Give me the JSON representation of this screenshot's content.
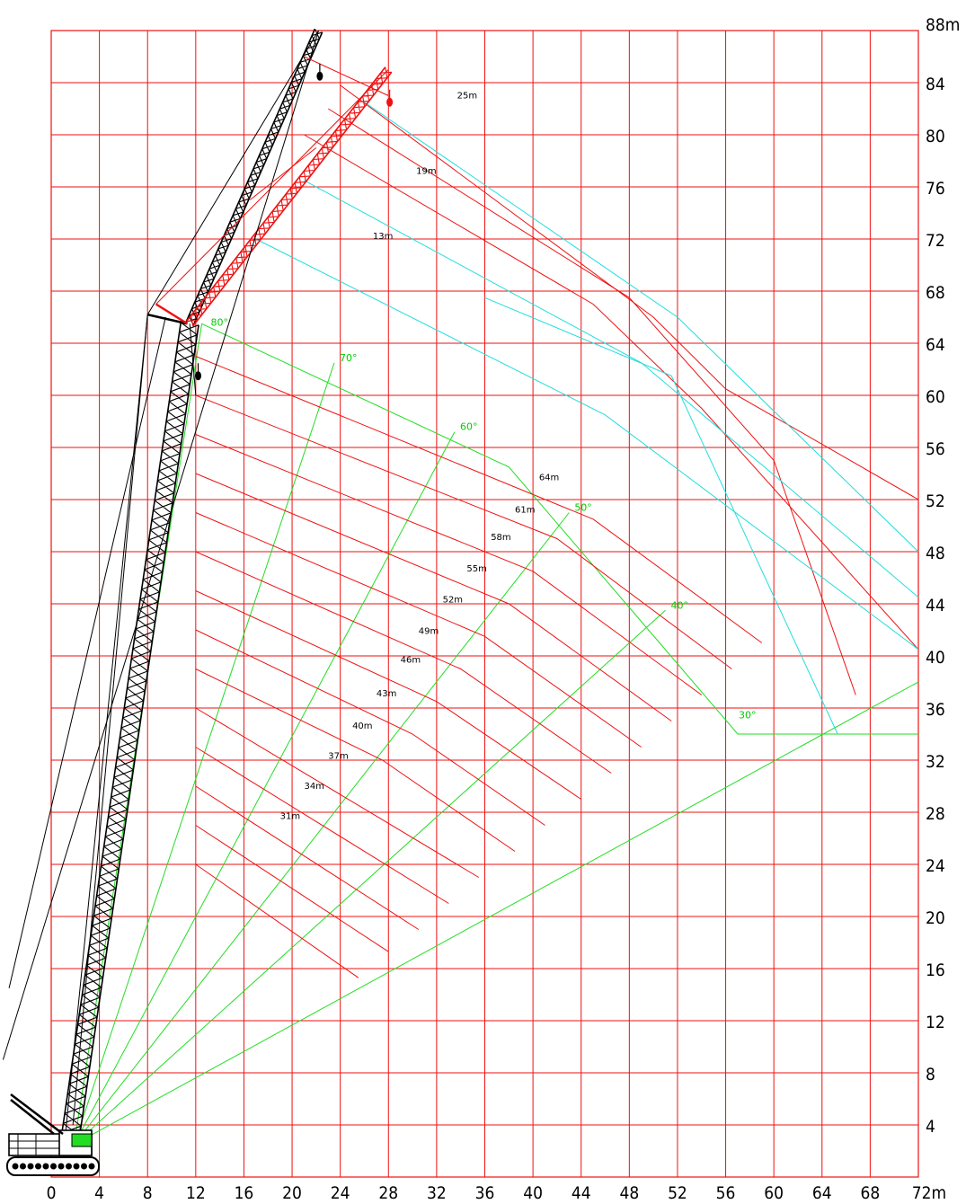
{
  "chart_data": {
    "type": "range-diagram",
    "x_axis": {
      "ticks": [
        "0",
        "4",
        "8",
        "12",
        "16",
        "20",
        "24",
        "28",
        "32",
        "36",
        "40",
        "44",
        "48",
        "52",
        "56",
        "60",
        "64",
        "68",
        "72m"
      ],
      "range": [
        0,
        72
      ]
    },
    "y_axis": {
      "ticks": [
        "4",
        "8",
        "12",
        "16",
        "20",
        "24",
        "28",
        "32",
        "36",
        "40",
        "44",
        "48",
        "52",
        "56",
        "60",
        "64",
        "68",
        "72",
        "76",
        "80",
        "84",
        "88m"
      ],
      "range": [
        0,
        88
      ]
    },
    "grid": true,
    "colors": {
      "grid": "#ee1111",
      "main_boom_curves": "#ee1111",
      "jib_curves": "#22dddd",
      "angle_lines": "#22dd22",
      "main_boom": "#000000",
      "luffing_jib": "#ee1111",
      "background": "#ffffff"
    },
    "main_boom_curves": [
      {
        "label": "31m",
        "label_at": [
          19,
          27.5
        ],
        "points": [
          [
            12,
            24
          ],
          [
            25.5,
            15.3
          ]
        ]
      },
      {
        "label": "34m",
        "label_at": [
          21,
          29.8
        ],
        "points": [
          [
            12,
            27
          ],
          [
            28,
            17.3
          ]
        ]
      },
      {
        "label": "37m",
        "label_at": [
          23,
          32.1
        ],
        "points": [
          [
            12,
            30
          ],
          [
            30.5,
            19
          ]
        ]
      },
      {
        "label": "40m",
        "label_at": [
          25,
          34.4
        ],
        "points": [
          [
            12,
            33
          ],
          [
            33,
            21
          ]
        ]
      },
      {
        "label": "43m",
        "label_at": [
          27,
          36.9
        ],
        "points": [
          [
            12,
            36
          ],
          [
            35.5,
            23
          ]
        ]
      },
      {
        "label": "46m",
        "label_at": [
          29,
          39.5
        ],
        "points": [
          [
            12,
            39
          ],
          [
            27.5,
            32
          ],
          [
            38.5,
            25
          ]
        ]
      },
      {
        "label": "49m",
        "label_at": [
          30.5,
          41.7
        ],
        "points": [
          [
            12,
            42
          ],
          [
            30,
            34
          ],
          [
            41,
            27
          ]
        ]
      },
      {
        "label": "52m",
        "label_at": [
          32.5,
          44.1
        ],
        "points": [
          [
            12,
            45
          ],
          [
            32,
            36.5
          ],
          [
            44,
            29
          ]
        ]
      },
      {
        "label": "55m",
        "label_at": [
          34.5,
          46.5
        ],
        "points": [
          [
            12,
            48
          ],
          [
            34,
            39
          ],
          [
            46.5,
            31
          ]
        ]
      },
      {
        "label": "58m",
        "label_at": [
          36.5,
          48.9
        ],
        "points": [
          [
            12,
            51
          ],
          [
            36,
            41.5
          ],
          [
            49,
            33
          ]
        ]
      },
      {
        "label": "61m",
        "label_at": [
          38.5,
          51
        ],
        "points": [
          [
            12,
            54
          ],
          [
            38,
            44
          ],
          [
            51.5,
            35
          ]
        ]
      },
      {
        "label": "64m",
        "label_at": [
          40.5,
          53.5
        ],
        "points": [
          [
            12,
            57
          ],
          [
            40,
            46.5
          ],
          [
            54,
            37
          ]
        ]
      },
      {
        "label": "",
        "points": [
          [
            12,
            60
          ],
          [
            42,
            49
          ],
          [
            56.5,
            39
          ]
        ]
      },
      {
        "label": "",
        "points": [
          [
            12,
            63
          ],
          [
            45,
            50.5
          ],
          [
            59,
            41
          ]
        ]
      }
    ],
    "jib_curves": [
      {
        "label": "13m",
        "label_at": [
          26.7,
          72
        ],
        "points": [
          [
            17,
            72
          ],
          [
            46,
            58.5
          ],
          [
            72,
            40.5
          ]
        ]
      },
      {
        "label": "19m",
        "label_at": [
          30.3,
          77
        ],
        "points": [
          [
            21,
            76.5
          ],
          [
            49,
            62.5
          ],
          [
            72,
            44.5
          ]
        ]
      },
      {
        "label": "25m",
        "label_at": [
          33.7,
          82.8
        ],
        "points": [
          [
            26,
            82.5
          ],
          [
            52,
            66
          ],
          [
            72,
            48
          ]
        ]
      }
    ],
    "boom_angle_lines": [
      {
        "label": "80°",
        "end": [
          12.5,
          65.5
        ]
      },
      {
        "label": "70°",
        "end": [
          23.5,
          62.5
        ]
      },
      {
        "label": "60°",
        "end": [
          33.5,
          57.2
        ]
      },
      {
        "label": "50°",
        "end": [
          43,
          51
        ]
      },
      {
        "label": "40°",
        "end": [
          51,
          43.5
        ]
      },
      {
        "label": "30°",
        "end": [
          72,
          38
        ]
      }
    ],
    "angle_envelope": [
      [
        12.5,
        65.5
      ],
      [
        38,
        54.5
      ],
      [
        57,
        34
      ],
      [
        66,
        34
      ],
      [
        72,
        34
      ]
    ],
    "crane": {
      "main_boom": {
        "foot": [
          1.5,
          2.5
        ],
        "tip": [
          11.5,
          65.5
        ]
      },
      "mast": {
        "from": [
          11.5,
          65.5
        ],
        "to": [
          8,
          66
        ]
      },
      "luffing_jib_black": {
        "from": [
          11.5,
          65.5
        ],
        "tip": [
          22.2,
          88
        ]
      },
      "luffing_jib_red": {
        "from": [
          11.5,
          65.5
        ],
        "tip": [
          28,
          85
        ]
      }
    }
  }
}
